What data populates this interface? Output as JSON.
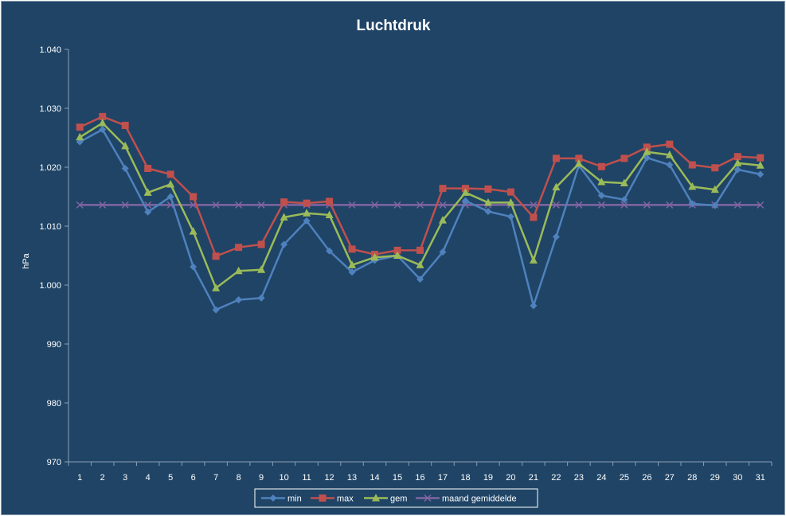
{
  "chart_data": {
    "type": "line",
    "title": "Luchtdruk",
    "xlabel": "",
    "ylabel": "hPa",
    "ylim": [
      970,
      1040
    ],
    "yticks": [
      970,
      980,
      990,
      1000,
      1010,
      1020,
      1030,
      1040
    ],
    "ytick_labels": [
      "970",
      "980",
      "990",
      "1.000",
      "1.010",
      "1.020",
      "1.030",
      "1.040"
    ],
    "categories": [
      "1",
      "2",
      "3",
      "4",
      "5",
      "6",
      "7",
      "8",
      "9",
      "10",
      "11",
      "12",
      "13",
      "14",
      "15",
      "16",
      "17",
      "18",
      "19",
      "20",
      "21",
      "22",
      "23",
      "24",
      "25",
      "26",
      "27",
      "28",
      "29",
      "30",
      "31"
    ],
    "grid": false,
    "legend_position": "bottom",
    "series": [
      {
        "name": "min",
        "color": "#4f81bd",
        "marker": "diamond",
        "values": [
          1024.3,
          1026.4,
          1019.8,
          1012.4,
          1015.0,
          1003.1,
          995.8,
          997.5,
          997.8,
          1006.9,
          1010.9,
          1005.8,
          1002.2,
          1004.2,
          1005.0,
          1001.0,
          1005.6,
          1014.3,
          1012.5,
          1011.6,
          996.5,
          1008.2,
          1020.3,
          1015.2,
          1014.5,
          1021.6,
          1020.4,
          1013.8,
          1013.5,
          1019.6,
          1018.8
        ]
      },
      {
        "name": "max",
        "color": "#c0504d",
        "marker": "square",
        "values": [
          1026.8,
          1028.6,
          1027.1,
          1019.8,
          1018.8,
          1015.0,
          1004.9,
          1006.4,
          1006.9,
          1014.1,
          1013.9,
          1014.2,
          1006.1,
          1005.2,
          1005.9,
          1005.9,
          1016.4,
          1016.4,
          1016.3,
          1015.8,
          1011.5,
          1021.5,
          1021.5,
          1020.1,
          1021.5,
          1023.4,
          1023.9,
          1020.4,
          1019.9,
          1021.8,
          1021.6
        ]
      },
      {
        "name": "gem",
        "color": "#9bbb59",
        "marker": "triangle",
        "values": [
          1025.1,
          1027.5,
          1023.6,
          1015.7,
          1017.1,
          1009.1,
          999.5,
          1002.4,
          1002.6,
          1011.5,
          1012.2,
          1011.9,
          1003.4,
          1004.7,
          1005.0,
          1003.4,
          1011.0,
          1015.7,
          1014.0,
          1014.0,
          1004.2,
          1016.6,
          1020.6,
          1017.5,
          1017.3,
          1022.6,
          1022.1,
          1016.7,
          1016.2,
          1020.7,
          1020.3
        ]
      },
      {
        "name": "maand gemiddelde",
        "color": "#8064a2",
        "marker": "x",
        "values": [
          1013.6,
          1013.6,
          1013.6,
          1013.6,
          1013.6,
          1013.6,
          1013.6,
          1013.6,
          1013.6,
          1013.6,
          1013.6,
          1013.6,
          1013.6,
          1013.6,
          1013.6,
          1013.6,
          1013.6,
          1013.6,
          1013.6,
          1013.6,
          1013.6,
          1013.6,
          1013.6,
          1013.6,
          1013.6,
          1013.6,
          1013.6,
          1013.6,
          1013.6,
          1013.6,
          1013.6
        ]
      }
    ]
  }
}
